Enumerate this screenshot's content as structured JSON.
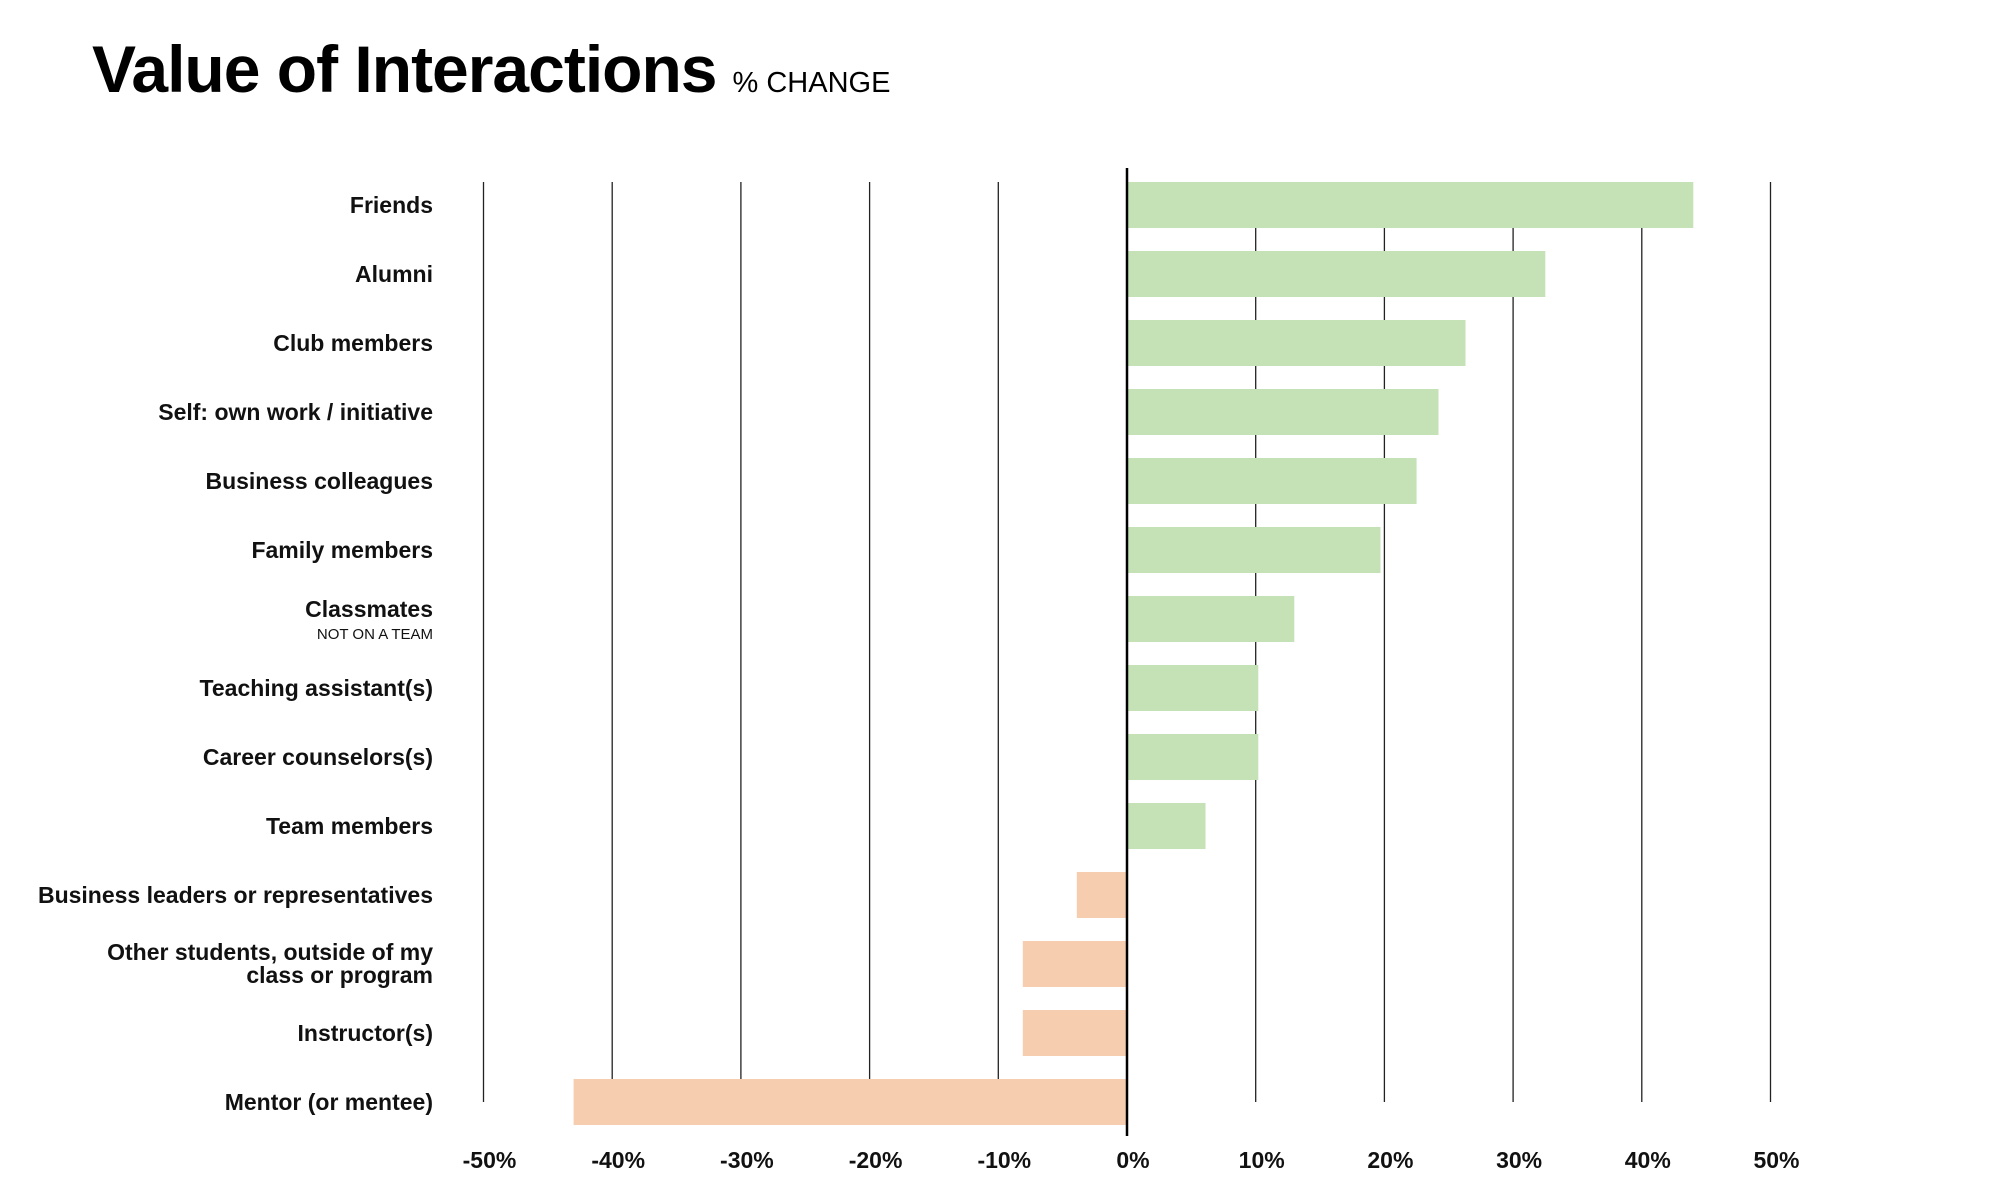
{
  "chart_data": {
    "type": "bar",
    "orientation": "horizontal",
    "title": "Value of Interactions",
    "subtitle": "% CHANGE",
    "xlabel": "",
    "ylabel": "",
    "xlim": [
      -50,
      50
    ],
    "x_ticks": [
      -50,
      -40,
      -30,
      -20,
      -10,
      0,
      10,
      20,
      30,
      40,
      50
    ],
    "x_tick_labels": [
      "-50%",
      "-40%",
      "-30%",
      "-20%",
      "-10%",
      "0%",
      "10%",
      "20%",
      "30%",
      "40%",
      "50%"
    ],
    "grid": true,
    "positive_color": "#c5e2b7",
    "negative_color": "#f7cdb0",
    "categories": [
      {
        "label": "Friends",
        "note": "",
        "value": 44
      },
      {
        "label": "Alumni",
        "note": "",
        "value": 32.5
      },
      {
        "label": "Club members",
        "note": "",
        "value": 26.3
      },
      {
        "label": "Self: own work / initiative",
        "note": "",
        "value": 24.2
      },
      {
        "label": "Business colleagues",
        "note": "",
        "value": 22.5
      },
      {
        "label": "Family members",
        "note": "",
        "value": 19.7
      },
      {
        "label": "Classmates",
        "note": "NOT ON A TEAM",
        "value": 13
      },
      {
        "label": "Teaching assistant(s)",
        "note": "",
        "value": 10.2
      },
      {
        "label": "Career counselors(s)",
        "note": "",
        "value": 10.2
      },
      {
        "label": "Team members",
        "note": "",
        "value": 6.1
      },
      {
        "label": "Business leaders or representatives",
        "note": "",
        "value": -3.9
      },
      {
        "label": [
          "Other students, outside of my",
          "class or program"
        ],
        "note": "",
        "value": -8.1
      },
      {
        "label": "Instructor(s)",
        "note": "",
        "value": -8.1
      },
      {
        "label": "Mentor (or mentee)",
        "note": "",
        "value": -43
      }
    ]
  }
}
